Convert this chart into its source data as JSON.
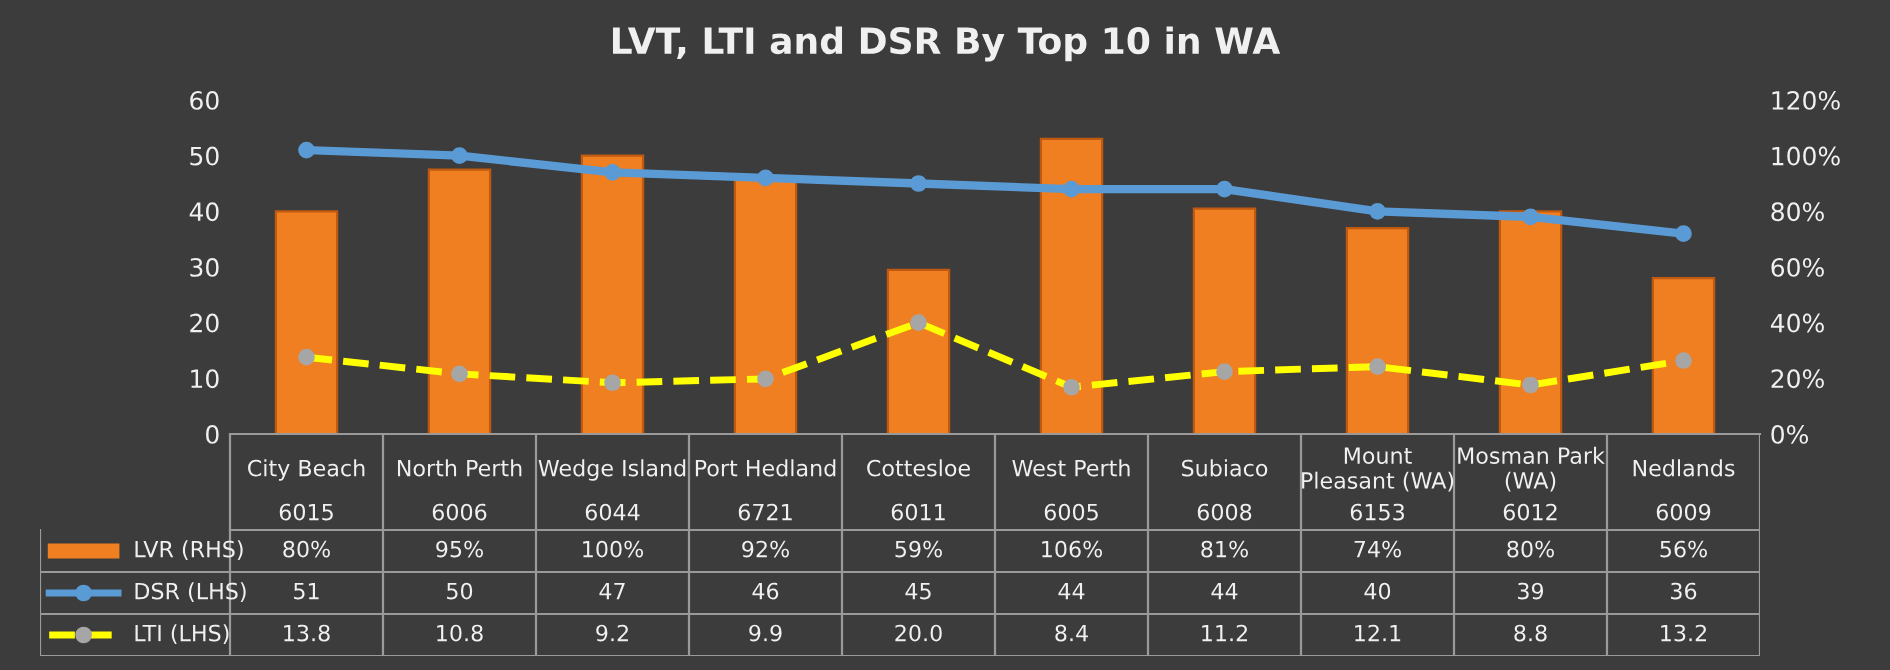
{
  "chart_data": {
    "type": "bar",
    "title": "LVT, LTI and DSR By Top 10 in WA",
    "categories": [
      "City Beach\n6015",
      "North Perth\n6006",
      "Wedge Island\n6044",
      "Port Hedland\n6721",
      "Cottesloe\n6011",
      "West Perth\n6005",
      "Subiaco\n6008",
      "Mount\nPleasant (WA)\n6153",
      "Mosman Park\n(WA)\n6012",
      "Nedlands\n6009"
    ],
    "series": [
      {
        "name": "LVR (RHS)",
        "axis": "y2",
        "color": "#f07f22",
        "values": [
          80,
          95,
          100,
          92,
          59,
          106,
          81,
          74,
          80,
          56
        ],
        "value_labels": [
          "80%",
          "95%",
          "100%",
          "92%",
          "59%",
          "106%",
          "81%",
          "74%",
          "80%",
          "56%"
        ]
      },
      {
        "name": "DSR (LHS)",
        "type": "line",
        "color": "#5b9bd5",
        "marker": "circle",
        "line_style": "solid",
        "values": [
          51,
          50,
          47,
          46,
          45,
          44,
          44,
          40,
          39,
          36
        ],
        "value_labels": [
          "51",
          "50",
          "47",
          "46",
          "45",
          "44",
          "44",
          "40",
          "39",
          "36"
        ]
      },
      {
        "name": "LTI (LHS)",
        "type": "line",
        "color": "#ffff00",
        "marker": "circle",
        "line_style": "dashed",
        "values": [
          13.8,
          10.8,
          9.2,
          9.9,
          20.0,
          8.4,
          11.2,
          12.1,
          8.8,
          13.2
        ],
        "value_labels": [
          "13.8",
          "10.8",
          "9.2",
          "9.9",
          "20.0",
          "8.4",
          "11.2",
          "12.1",
          "8.8",
          "13.2"
        ]
      }
    ],
    "ylim": [
      0,
      60
    ],
    "yticks": [
      0,
      10,
      20,
      30,
      40,
      50,
      60
    ],
    "y2lim": [
      0,
      120
    ],
    "y2ticks": [
      {
        "value": 0,
        "label": "0%"
      },
      {
        "value": 20,
        "label": "20%"
      },
      {
        "value": 40,
        "label": "40%"
      },
      {
        "value": 60,
        "label": "60%"
      },
      {
        "value": 80,
        "label": "80%"
      },
      {
        "value": 100,
        "label": "100%"
      },
      {
        "value": 120,
        "label": "120%"
      }
    ],
    "legend": "bottom left"
  }
}
